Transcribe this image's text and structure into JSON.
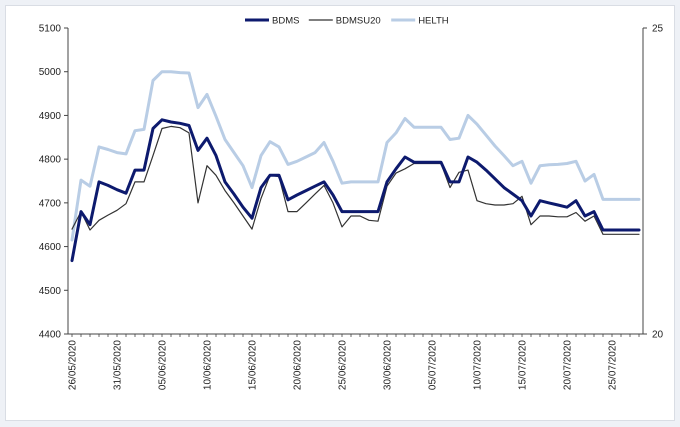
{
  "chart_data": {
    "type": "line",
    "title": "",
    "xlabel": "",
    "ylabel": "",
    "ylim": [
      4400,
      5100
    ],
    "y_ticks": [
      4400,
      4500,
      4600,
      4700,
      4800,
      4900,
      5000,
      5100
    ],
    "y2lim": [
      20,
      25
    ],
    "y2_ticks": [
      20,
      25
    ],
    "legend_position": "top-center",
    "grid": false,
    "x_tick_labels": [
      "26/05/2020",
      "31/05/2020",
      "05/06/2020",
      "10/06/2020",
      "15/06/2020",
      "20/06/2020",
      "25/06/2020",
      "30/06/2020",
      "05/07/2020",
      "10/07/2020",
      "15/07/2020",
      "20/07/2020",
      "25/07/2020"
    ],
    "x_tick_days": [
      0,
      5,
      10,
      15,
      20,
      25,
      30,
      35,
      40,
      45,
      50,
      55,
      60
    ],
    "x_range": [
      0,
      63
    ],
    "series": [
      {
        "name": "BDMS",
        "axis": "left",
        "color": "#0d1a6e",
        "width": 3,
        "points": [
          [
            0,
            4568
          ],
          [
            1,
            4680
          ],
          [
            2,
            4650
          ],
          [
            3,
            4748
          ],
          [
            4,
            4740
          ],
          [
            5,
            4730
          ],
          [
            6,
            4722
          ],
          [
            7,
            4775
          ],
          [
            8,
            4775
          ],
          [
            9,
            4870
          ],
          [
            10,
            4890
          ],
          [
            11,
            4885
          ],
          [
            12,
            4882
          ],
          [
            13,
            4877
          ],
          [
            14,
            4820
          ],
          [
            15,
            4848
          ],
          [
            16,
            4808
          ],
          [
            17,
            4748
          ],
          [
            18,
            4720
          ],
          [
            19,
            4690
          ],
          [
            20,
            4665
          ],
          [
            21,
            4735
          ],
          [
            22,
            4763
          ],
          [
            23,
            4763
          ],
          [
            24,
            4707
          ],
          [
            25,
            4718
          ],
          [
            26,
            4728
          ],
          [
            27,
            4738
          ],
          [
            28,
            4748
          ],
          [
            29,
            4718
          ],
          [
            30,
            4680
          ],
          [
            31,
            4680
          ],
          [
            32,
            4680
          ],
          [
            33,
            4680
          ],
          [
            34,
            4680
          ],
          [
            35,
            4748
          ],
          [
            36,
            4778
          ],
          [
            37,
            4805
          ],
          [
            38,
            4793
          ],
          [
            39,
            4793
          ],
          [
            40,
            4793
          ],
          [
            41,
            4793
          ],
          [
            42,
            4748
          ],
          [
            43,
            4748
          ],
          [
            44,
            4805
          ],
          [
            45,
            4793
          ],
          [
            46,
            4775
          ],
          [
            47,
            4755
          ],
          [
            48,
            4735
          ],
          [
            49,
            4720
          ],
          [
            50,
            4705
          ],
          [
            51,
            4670
          ],
          [
            52,
            4705
          ],
          [
            53,
            4700
          ],
          [
            54,
            4695
          ],
          [
            55,
            4690
          ],
          [
            56,
            4705
          ],
          [
            57,
            4670
          ],
          [
            58,
            4680
          ],
          [
            59,
            4638
          ],
          [
            60,
            4638
          ],
          [
            61,
            4638
          ],
          [
            62,
            4638
          ],
          [
            63,
            4638
          ]
        ]
      },
      {
        "name": "BDMSU20",
        "axis": "left",
        "color": "#333333",
        "width": 1.2,
        "points": [
          [
            0,
            4640
          ],
          [
            1,
            4680
          ],
          [
            2,
            4638
          ],
          [
            3,
            4660
          ],
          [
            4,
            4672
          ],
          [
            5,
            4683
          ],
          [
            6,
            4698
          ],
          [
            7,
            4748
          ],
          [
            8,
            4748
          ],
          [
            9,
            4808
          ],
          [
            10,
            4870
          ],
          [
            11,
            4875
          ],
          [
            12,
            4872
          ],
          [
            13,
            4860
          ],
          [
            14,
            4700
          ],
          [
            15,
            4785
          ],
          [
            16,
            4763
          ],
          [
            17,
            4728
          ],
          [
            18,
            4700
          ],
          [
            19,
            4670
          ],
          [
            20,
            4640
          ],
          [
            21,
            4710
          ],
          [
            22,
            4763
          ],
          [
            23,
            4760
          ],
          [
            24,
            4680
          ],
          [
            25,
            4680
          ],
          [
            26,
            4700
          ],
          [
            27,
            4720
          ],
          [
            28,
            4740
          ],
          [
            29,
            4700
          ],
          [
            30,
            4645
          ],
          [
            31,
            4670
          ],
          [
            32,
            4670
          ],
          [
            33,
            4660
          ],
          [
            34,
            4658
          ],
          [
            35,
            4738
          ],
          [
            36,
            4768
          ],
          [
            37,
            4778
          ],
          [
            38,
            4790
          ],
          [
            39,
            4790
          ],
          [
            40,
            4790
          ],
          [
            41,
            4790
          ],
          [
            42,
            4735
          ],
          [
            43,
            4770
          ],
          [
            44,
            4775
          ],
          [
            45,
            4705
          ],
          [
            46,
            4698
          ],
          [
            47,
            4695
          ],
          [
            48,
            4695
          ],
          [
            49,
            4698
          ],
          [
            50,
            4715
          ],
          [
            51,
            4650
          ],
          [
            52,
            4670
          ],
          [
            53,
            4670
          ],
          [
            54,
            4668
          ],
          [
            55,
            4668
          ],
          [
            56,
            4678
          ],
          [
            57,
            4658
          ],
          [
            58,
            4670
          ],
          [
            59,
            4628
          ],
          [
            60,
            4628
          ],
          [
            61,
            4628
          ],
          [
            62,
            4628
          ],
          [
            63,
            4628
          ]
        ]
      },
      {
        "name": "HELTH",
        "axis": "left",
        "color": "#b9cde5",
        "width": 3,
        "points": [
          [
            0,
            4615
          ],
          [
            1,
            4752
          ],
          [
            2,
            4738
          ],
          [
            3,
            4828
          ],
          [
            4,
            4822
          ],
          [
            5,
            4815
          ],
          [
            6,
            4812
          ],
          [
            7,
            4865
          ],
          [
            8,
            4868
          ],
          [
            9,
            4980
          ],
          [
            10,
            5000
          ],
          [
            11,
            5000
          ],
          [
            12,
            4998
          ],
          [
            13,
            4997
          ],
          [
            14,
            4918
          ],
          [
            15,
            4948
          ],
          [
            16,
            4898
          ],
          [
            17,
            4845
          ],
          [
            18,
            4815
          ],
          [
            19,
            4785
          ],
          [
            20,
            4735
          ],
          [
            21,
            4808
          ],
          [
            22,
            4840
          ],
          [
            23,
            4828
          ],
          [
            24,
            4788
          ],
          [
            25,
            4795
          ],
          [
            26,
            4805
          ],
          [
            27,
            4815
          ],
          [
            28,
            4838
          ],
          [
            29,
            4795
          ],
          [
            30,
            4745
          ],
          [
            31,
            4748
          ],
          [
            32,
            4748
          ],
          [
            33,
            4748
          ],
          [
            34,
            4748
          ],
          [
            35,
            4838
          ],
          [
            36,
            4860
          ],
          [
            37,
            4893
          ],
          [
            38,
            4873
          ],
          [
            39,
            4873
          ],
          [
            40,
            4873
          ],
          [
            41,
            4873
          ],
          [
            42,
            4845
          ],
          [
            43,
            4848
          ],
          [
            44,
            4900
          ],
          [
            45,
            4880
          ],
          [
            46,
            4855
          ],
          [
            47,
            4830
          ],
          [
            48,
            4808
          ],
          [
            49,
            4785
          ],
          [
            50,
            4795
          ],
          [
            51,
            4745
          ],
          [
            52,
            4785
          ],
          [
            53,
            4787
          ],
          [
            54,
            4788
          ],
          [
            55,
            4790
          ],
          [
            56,
            4795
          ],
          [
            57,
            4750
          ],
          [
            58,
            4765
          ],
          [
            59,
            4708
          ],
          [
            60,
            4708
          ],
          [
            61,
            4708
          ],
          [
            62,
            4708
          ],
          [
            63,
            4708
          ]
        ]
      }
    ]
  }
}
